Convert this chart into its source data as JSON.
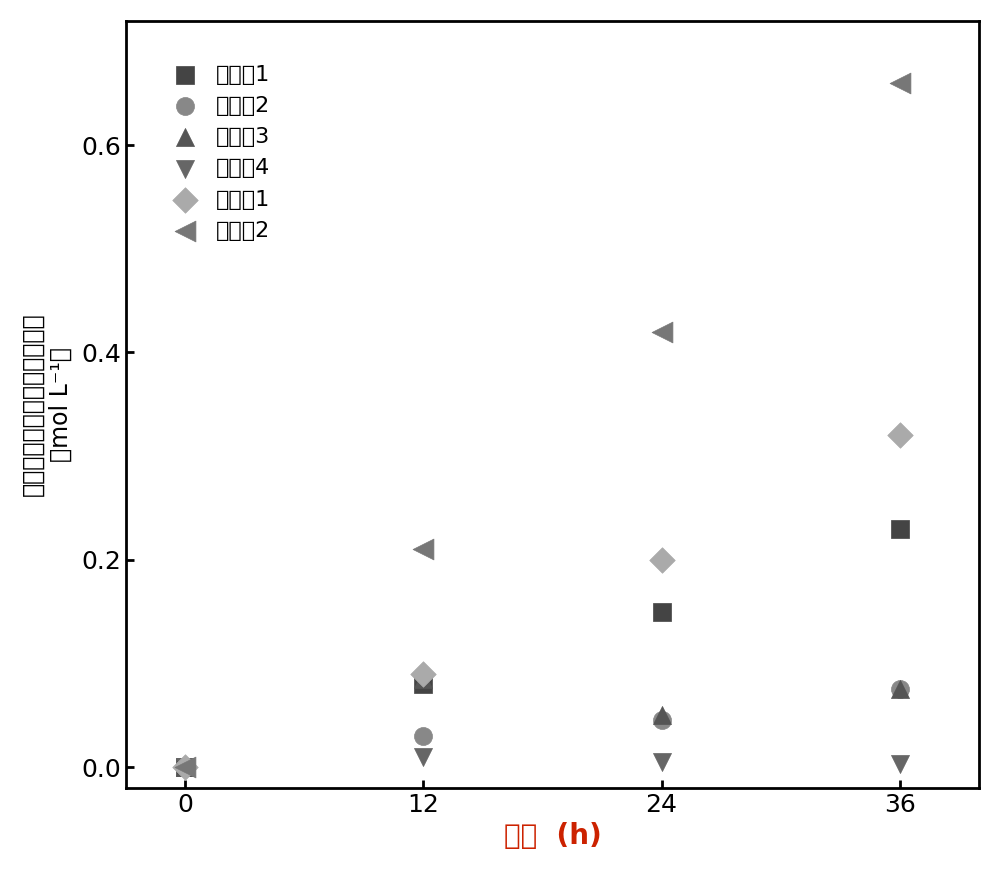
{
  "x_values": [
    0,
    12,
    24,
    36
  ],
  "series": [
    {
      "label": "实施例1",
      "y": [
        0.0,
        0.08,
        0.15,
        0.23
      ],
      "marker": "s",
      "color": "#444444",
      "markersize": 13
    },
    {
      "label": "实施例2",
      "y": [
        0.0,
        0.03,
        0.045,
        0.075
      ],
      "marker": "o",
      "color": "#888888",
      "markersize": 13
    },
    {
      "label": "实施例3",
      "y": [
        0.0,
        0.085,
        0.05,
        0.075
      ],
      "marker": "^",
      "color": "#555555",
      "markersize": 13
    },
    {
      "label": "实施例4",
      "y": [
        0.0,
        0.01,
        0.005,
        0.003
      ],
      "marker": "v",
      "color": "#666666",
      "markersize": 13
    },
    {
      "label": "对比例1",
      "y": [
        0.0,
        0.09,
        0.2,
        0.32
      ],
      "marker": "D",
      "color": "#aaaaaa",
      "markersize": 13
    },
    {
      "label": "对比例2",
      "y": [
        0.0,
        0.21,
        0.42,
        0.66
      ],
      "marker": "<",
      "color": "#777777",
      "markersize": 15
    }
  ],
  "xlabel": "时间  (h)",
  "ylabel_line1": "正极电解液罐内铁络合物浓度",
  "ylabel_line2": "（mol L⁻¹）",
  "xlim": [
    -3,
    40
  ],
  "ylim": [
    -0.02,
    0.72
  ],
  "xticks": [
    0,
    12,
    24,
    36
  ],
  "yticks": [
    0.0,
    0.2,
    0.4,
    0.6
  ],
  "xlabel_fontsize": 20,
  "ylabel_fontsize": 17,
  "tick_fontsize": 18,
  "legend_fontsize": 16,
  "xlabel_color": "#cc2200",
  "background_color": "#ffffff"
}
